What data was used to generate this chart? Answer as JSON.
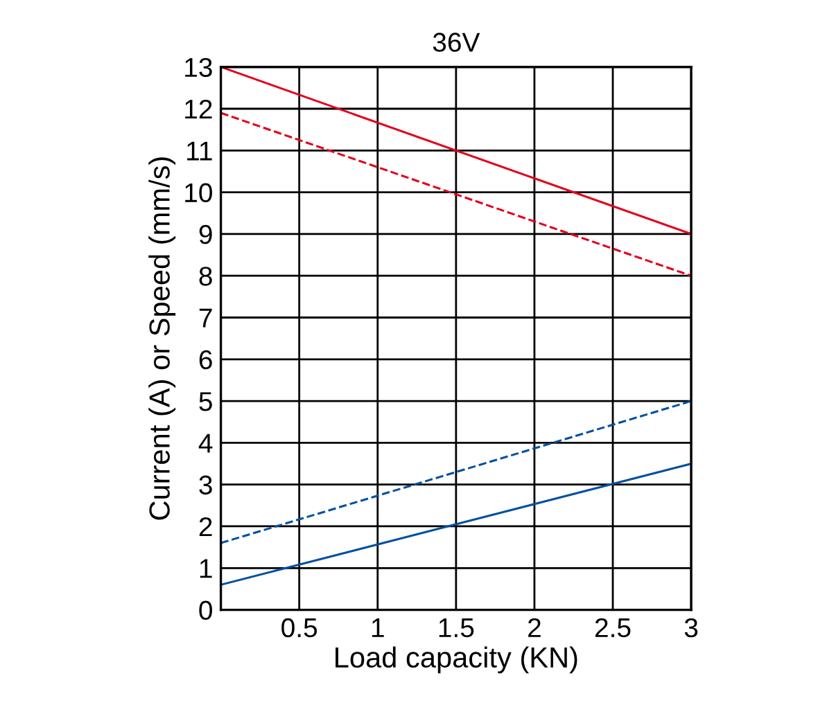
{
  "chart_data": {
    "type": "line",
    "title": "36V",
    "xlabel": "Load capacity (KN)",
    "ylabel": "Current (A) or Speed (mm/s)",
    "x": [
      0,
      3
    ],
    "series": [
      {
        "color": "#e3001b",
        "values": [
          13,
          9
        ],
        "line_style": "solid"
      },
      {
        "color": "#e3001b",
        "values": [
          11.9,
          8
        ],
        "line_style": "dashed"
      },
      {
        "color": "#0050a0",
        "values": [
          1.6,
          5
        ],
        "line_style": "dashed"
      },
      {
        "color": "#0050a0",
        "values": [
          0.6,
          3.5
        ],
        "line_style": "solid"
      }
    ],
    "xlim": [
      0,
      3
    ],
    "xticks": [
      0.5,
      1,
      1.5,
      2,
      2.5,
      3
    ],
    "ylim": [
      0,
      13
    ],
    "yticks": [
      0,
      1,
      2,
      3,
      4,
      5,
      6,
      7,
      8,
      9,
      10,
      11,
      12,
      13
    ],
    "grid": true,
    "legend": false,
    "marker": "none"
  }
}
